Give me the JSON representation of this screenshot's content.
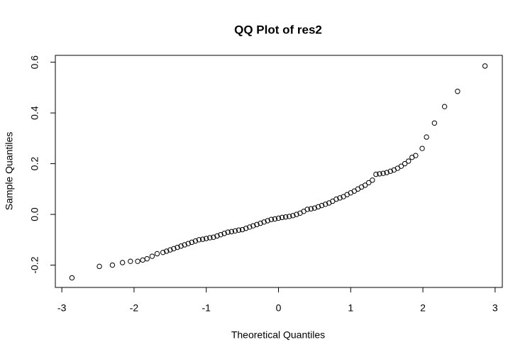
{
  "chart_data": {
    "type": "scatter",
    "title": "QQ Plot of res2",
    "xlabel": "Theoretical Quantiles",
    "ylabel": "Sample Quantiles",
    "xlim": [
      -3.09,
      3.1
    ],
    "ylim": [
      -0.288,
      0.627
    ],
    "xticks": [
      -3,
      -2,
      -1,
      0,
      1,
      2,
      3
    ],
    "yticks": [
      -0.2,
      {
        "value": 0,
        "label": "0.0"
      },
      0.2,
      0.4,
      0.6
    ],
    "color": "#000000",
    "x": [
      -2.86,
      -2.48,
      -2.3,
      -2.16,
      -2.05,
      -1.95,
      -1.88,
      -1.82,
      -1.75,
      -1.68,
      -1.6,
      -1.55,
      -1.5,
      -1.45,
      -1.4,
      -1.35,
      -1.3,
      -1.25,
      -1.2,
      -1.15,
      -1.1,
      -1.05,
      -1.0,
      -0.95,
      -0.9,
      -0.85,
      -0.8,
      -0.75,
      -0.7,
      -0.65,
      -0.6,
      -0.55,
      -0.5,
      -0.45,
      -0.4,
      -0.35,
      -0.3,
      -0.25,
      -0.2,
      -0.15,
      -0.1,
      -0.05,
      0,
      0.05,
      0.1,
      0.15,
      0.2,
      0.25,
      0.3,
      0.35,
      0.4,
      0.45,
      0.5,
      0.55,
      0.6,
      0.65,
      0.7,
      0.75,
      0.8,
      0.85,
      0.9,
      0.95,
      1.0,
      1.05,
      1.1,
      1.15,
      1.2,
      1.25,
      1.3,
      1.35,
      1.4,
      1.45,
      1.5,
      1.55,
      1.6,
      1.65,
      1.7,
      1.75,
      1.8,
      1.85,
      1.9,
      1.99,
      2.05,
      2.16,
      2.3,
      2.48,
      2.86
    ],
    "values": [
      -0.25,
      -0.205,
      -0.2,
      -0.19,
      -0.185,
      -0.185,
      -0.18,
      -0.175,
      -0.165,
      -0.155,
      -0.15,
      -0.145,
      -0.14,
      -0.135,
      -0.13,
      -0.125,
      -0.12,
      -0.115,
      -0.11,
      -0.105,
      -0.1,
      -0.098,
      -0.095,
      -0.092,
      -0.09,
      -0.085,
      -0.08,
      -0.075,
      -0.07,
      -0.068,
      -0.065,
      -0.062,
      -0.06,
      -0.055,
      -0.05,
      -0.045,
      -0.04,
      -0.035,
      -0.03,
      -0.025,
      -0.02,
      -0.018,
      -0.015,
      -0.012,
      -0.01,
      -0.008,
      -0.005,
      0,
      0.005,
      0.012,
      0.02,
      0.022,
      0.025,
      0.03,
      0.035,
      0.04,
      0.045,
      0.052,
      0.06,
      0.065,
      0.07,
      0.078,
      0.085,
      0.092,
      0.1,
      0.108,
      0.115,
      0.125,
      0.135,
      0.158,
      0.16,
      0.162,
      0.165,
      0.17,
      0.175,
      0.182,
      0.19,
      0.2,
      0.21,
      0.225,
      0.232,
      0.26,
      0.305,
      0.36,
      0.425,
      0.485,
      0.585
    ]
  }
}
